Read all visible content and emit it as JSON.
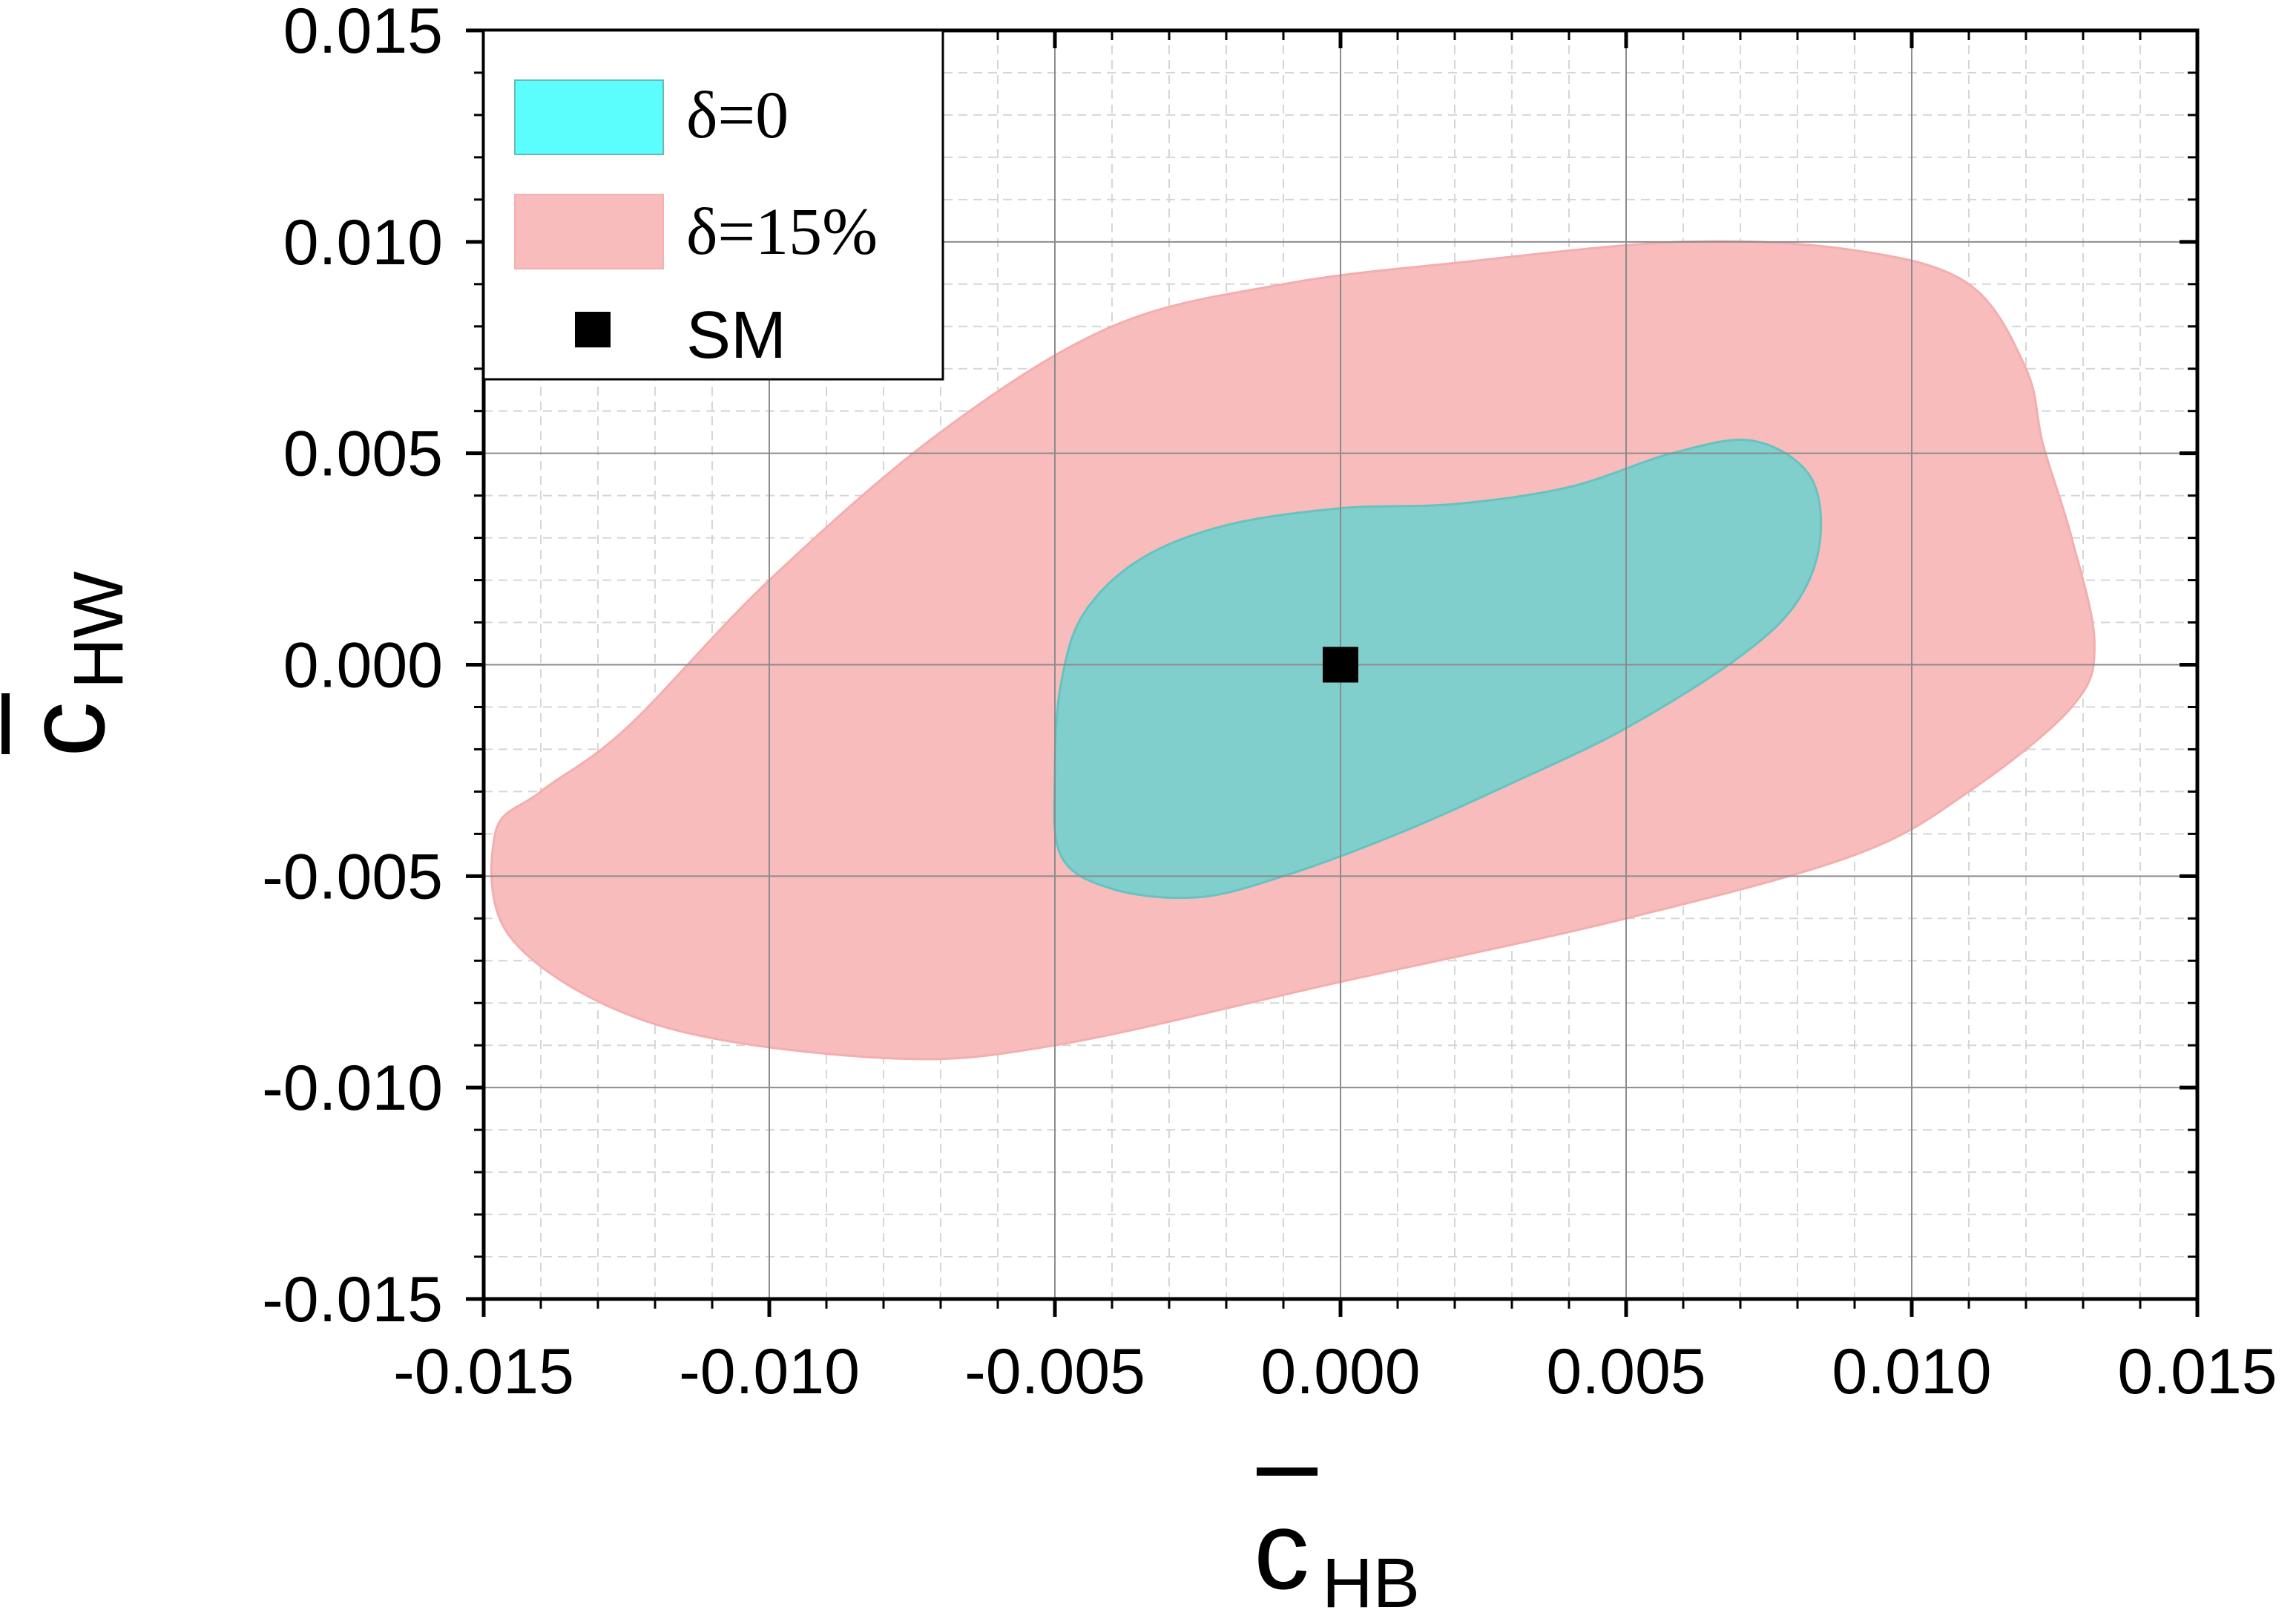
{
  "chart_data": {
    "type": "contour-region",
    "xlabel": {
      "symbol": "c",
      "subscript": "HB",
      "overbar": true
    },
    "ylabel": {
      "symbol": "c",
      "subscript": "HW",
      "overbar": true
    },
    "xlim": [
      -0.015,
      0.015
    ],
    "ylim": [
      -0.015,
      0.015
    ],
    "x_ticks": [
      -0.015,
      -0.01,
      -0.005,
      0.0,
      0.005,
      0.01,
      0.015
    ],
    "y_ticks": [
      -0.015,
      -0.01,
      -0.005,
      0.0,
      0.005,
      0.01,
      0.015
    ],
    "x_tick_labels": [
      "-0.015",
      "-0.010",
      "-0.005",
      "0.000",
      "0.005",
      "0.010",
      "0.015"
    ],
    "y_tick_labels": [
      "-0.015",
      "-0.010",
      "-0.005",
      "0.000",
      "0.005",
      "0.010",
      "0.015"
    ],
    "minor_grid_step": 0.001,
    "grid": true,
    "legend_position": "top-left",
    "series": [
      {
        "name": "δ=15%",
        "kind": "region",
        "color": "#f9bcbc",
        "boundary": [
          [
            -0.0148,
            -0.004
          ],
          [
            -0.014,
            -0.003
          ],
          [
            -0.0125,
            -0.0015
          ],
          [
            -0.01,
            0.002
          ],
          [
            -0.007,
            0.0055
          ],
          [
            -0.004,
            0.008
          ],
          [
            -0.001,
            0.009
          ],
          [
            0.002,
            0.0095
          ],
          [
            0.006,
            0.01
          ],
          [
            0.009,
            0.0098
          ],
          [
            0.011,
            0.009
          ],
          [
            0.012,
            0.007
          ],
          [
            0.0123,
            0.0052
          ],
          [
            0.0128,
            0.003
          ],
          [
            0.0132,
            0.0005
          ],
          [
            0.0128,
            -0.001
          ],
          [
            0.011,
            -0.003
          ],
          [
            0.009,
            -0.0045
          ],
          [
            0.005,
            -0.006
          ],
          [
            0.0,
            -0.0075
          ],
          [
            -0.005,
            -0.009
          ],
          [
            -0.008,
            -0.0093
          ],
          [
            -0.012,
            -0.0085
          ],
          [
            -0.0145,
            -0.0065
          ]
        ]
      },
      {
        "name": "δ=0",
        "kind": "region",
        "color": "#80cfcc",
        "legend_color": "#5cfdfd",
        "boundary": [
          [
            -0.005,
            -0.0025
          ],
          [
            -0.0049,
            -0.0005
          ],
          [
            -0.0045,
            0.0012
          ],
          [
            -0.0035,
            0.0025
          ],
          [
            -0.002,
            0.0033
          ],
          [
            0.0,
            0.0037
          ],
          [
            0.002,
            0.0038
          ],
          [
            0.004,
            0.0042
          ],
          [
            0.0058,
            0.005
          ],
          [
            0.0072,
            0.0053
          ],
          [
            0.0082,
            0.0045
          ],
          [
            0.0084,
            0.003
          ],
          [
            0.008,
            0.0015
          ],
          [
            0.007,
            0.0002
          ],
          [
            0.005,
            -0.0015
          ],
          [
            0.003,
            -0.0028
          ],
          [
            0.001,
            -0.004
          ],
          [
            -0.001,
            -0.005
          ],
          [
            -0.0025,
            -0.0055
          ],
          [
            -0.004,
            -0.0053
          ],
          [
            -0.0049,
            -0.0045
          ]
        ]
      },
      {
        "name": "SM",
        "kind": "point",
        "color": "#000000",
        "x": 0.0,
        "y": 0.0
      }
    ],
    "legend": [
      {
        "label": "δ=0",
        "kind": "region"
      },
      {
        "label": "δ=15%",
        "kind": "region"
      },
      {
        "label": "SM",
        "kind": "point"
      }
    ]
  }
}
